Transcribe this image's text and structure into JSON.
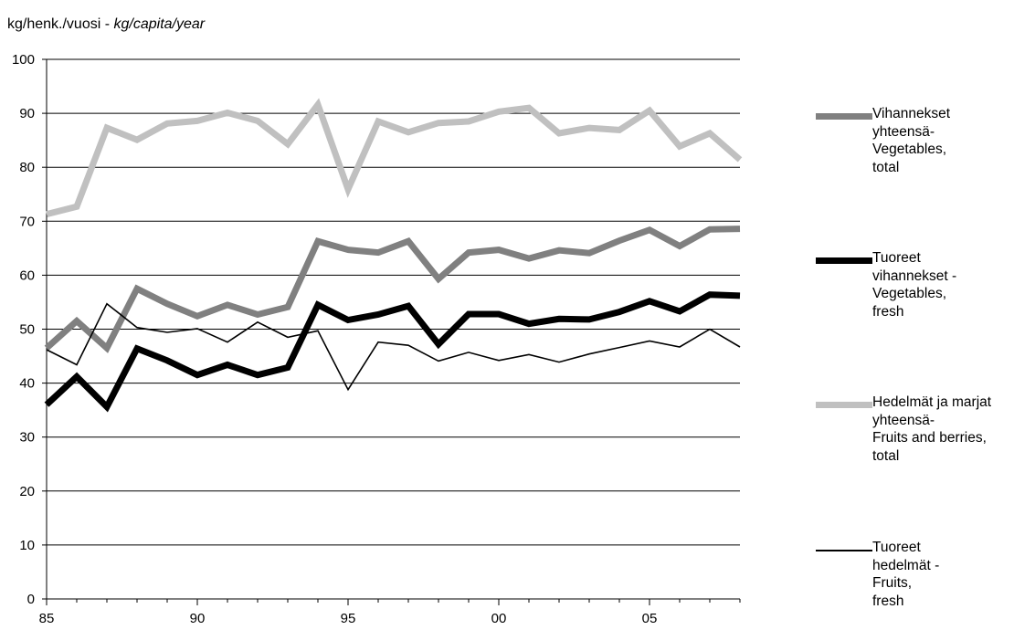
{
  "unit_label": {
    "text": "kg/henk./vuosi - ",
    "italic": "kg/capita/year"
  },
  "legend": [
    {
      "label": "Vihannekset\nyhteensä-\nVegetables,\ntotal",
      "color": "#808080"
    },
    {
      "label": "Tuoreet\nvihannekset -\nVegetables,\nfresh",
      "color": "#000000"
    },
    {
      "label": "Hedelmät ja marjat\nyhteensä-\nFruits and berries,\ntotal",
      "color": "#c0c0c0"
    },
    {
      "label": "Tuoreet\nhedelmät -\nFruits,\nfresh",
      "color": "#000000"
    }
  ],
  "chart_data": {
    "type": "line",
    "x": [
      1985,
      1986,
      1987,
      1988,
      1989,
      1990,
      1991,
      1992,
      1993,
      1994,
      1995,
      1996,
      1997,
      1998,
      1999,
      2000,
      2001,
      2002,
      2003,
      2004,
      2005,
      2006,
      2007,
      2008
    ],
    "xticks": [
      1985,
      1990,
      1995,
      2000,
      2005
    ],
    "xtick_labels": [
      "85",
      "90",
      "95",
      "00",
      "05"
    ],
    "xlim": [
      1985,
      2008
    ],
    "ylim": [
      0,
      100
    ],
    "yticks": [
      0,
      10,
      20,
      30,
      40,
      50,
      60,
      70,
      80,
      90,
      100
    ],
    "grid": true,
    "legend_position": "right",
    "series": [
      {
        "name": "Vihannekset yhteensä- Vegetables, total",
        "color": "#808080",
        "values": [
          46.5,
          51.5,
          46.5,
          57.5,
          54.7,
          52.4,
          54.5,
          52.7,
          54.1,
          66.3,
          64.7,
          64.2,
          66.3,
          59.3,
          64.2,
          64.7,
          63.1,
          64.6,
          64.1,
          66.4,
          68.4,
          65.4,
          68.5,
          68.6
        ]
      },
      {
        "name": "Tuoreet vihannekset - Vegetables, fresh",
        "color": "#000000",
        "values": [
          36.0,
          41.2,
          35.6,
          46.4,
          44.2,
          41.5,
          43.4,
          41.5,
          42.9,
          54.5,
          51.7,
          52.7,
          54.3,
          47.2,
          52.8,
          52.8,
          51.0,
          51.9,
          51.8,
          53.2,
          55.2,
          53.3,
          56.4,
          56.2
        ]
      },
      {
        "name": "Hedelmät ja marjat yhteensä- Fruits and berries, total",
        "color": "#c0c0c0",
        "values": [
          71.3,
          72.7,
          87.3,
          85.1,
          88.1,
          88.6,
          90.1,
          88.6,
          84.3,
          91.6,
          75.9,
          88.5,
          86.5,
          88.2,
          88.5,
          90.3,
          91.0,
          86.3,
          87.3,
          86.9,
          90.5,
          83.9,
          86.3,
          81.4
        ]
      },
      {
        "name": "Tuoreet hedelmät - Fruits, fresh",
        "color": "#000000",
        "values": [
          46.2,
          43.4,
          54.7,
          50.3,
          49.4,
          50.1,
          47.6,
          51.3,
          48.5,
          49.7,
          38.8,
          47.6,
          47.0,
          44.1,
          45.7,
          44.2,
          45.3,
          43.9,
          45.4,
          46.6,
          47.8,
          46.7,
          50.0,
          46.7
        ]
      }
    ]
  }
}
